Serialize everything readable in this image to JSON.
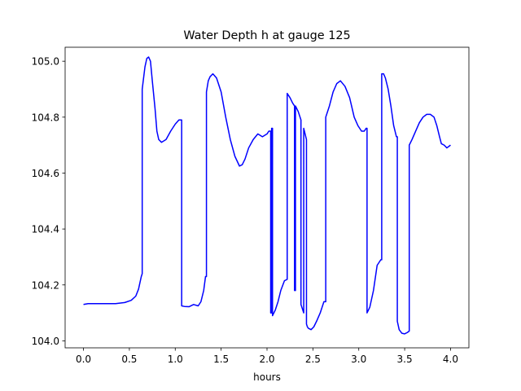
{
  "chart_data": {
    "type": "line",
    "title": "Water Depth h at gauge 125",
    "xlabel": "hours",
    "ylabel": "",
    "xlim": [
      -0.2,
      4.2
    ],
    "ylim": [
      103.975,
      105.05
    ],
    "xticks": [
      0.0,
      0.5,
      1.0,
      1.5,
      2.0,
      2.5,
      3.0,
      3.5,
      4.0
    ],
    "xtick_labels": [
      "0.0",
      "0.5",
      "1.0",
      "1.5",
      "2.0",
      "2.5",
      "3.0",
      "3.5",
      "4.0"
    ],
    "yticks": [
      104.0,
      104.2,
      104.4,
      104.6,
      104.8,
      105.0
    ],
    "ytick_labels": [
      "104.0",
      "104.2",
      "104.4",
      "104.6",
      "104.8",
      "105.0"
    ],
    "grid": false,
    "series": [
      {
        "color": "#0000ff",
        "x": [
          0.0,
          0.05,
          0.2,
          0.35,
          0.45,
          0.52,
          0.57,
          0.6,
          0.63,
          0.64,
          0.64,
          0.67,
          0.69,
          0.71,
          0.73,
          0.75,
          0.78,
          0.8,
          0.82,
          0.85,
          0.9,
          0.95,
          1.0,
          1.04,
          1.07,
          1.07,
          1.1,
          1.15,
          1.2,
          1.25,
          1.28,
          1.31,
          1.33,
          1.34,
          1.34,
          1.36,
          1.38,
          1.41,
          1.45,
          1.5,
          1.55,
          1.6,
          1.65,
          1.7,
          1.73,
          1.76,
          1.8,
          1.85,
          1.9,
          1.95,
          2.0,
          2.02,
          2.04,
          2.04,
          2.05,
          2.05,
          2.06,
          2.06,
          2.09,
          2.12,
          2.15,
          2.19,
          2.22,
          2.22,
          2.25,
          2.28,
          2.3,
          2.3,
          2.31,
          2.31,
          2.34,
          2.37,
          2.37,
          2.4,
          2.4,
          2.43,
          2.43,
          2.44,
          2.45,
          2.48,
          2.51,
          2.54,
          2.58,
          2.62,
          2.64,
          2.64,
          2.68,
          2.72,
          2.76,
          2.8,
          2.85,
          2.9,
          2.95,
          2.99,
          3.03,
          3.06,
          3.08,
          3.09,
          3.09,
          3.12,
          3.16,
          3.2,
          3.24,
          3.25,
          3.25,
          3.27,
          3.29,
          3.32,
          3.35,
          3.38,
          3.41,
          3.42,
          3.42,
          3.44,
          3.47,
          3.5,
          3.53,
          3.55,
          3.55,
          3.58,
          3.62,
          3.66,
          3.7,
          3.74,
          3.78,
          3.82,
          3.85,
          3.88,
          3.9,
          3.93,
          3.96,
          4.0
        ],
        "y": [
          104.13,
          104.133,
          104.133,
          104.133,
          104.137,
          104.145,
          104.16,
          104.185,
          104.23,
          104.24,
          104.9,
          104.98,
          105.01,
          105.015,
          105.0,
          104.93,
          104.83,
          104.75,
          104.72,
          104.71,
          104.72,
          104.75,
          104.775,
          104.79,
          104.79,
          104.125,
          104.123,
          104.122,
          104.13,
          104.125,
          104.14,
          104.18,
          104.23,
          104.23,
          104.89,
          104.93,
          104.945,
          104.955,
          104.94,
          104.89,
          104.8,
          104.72,
          104.66,
          104.625,
          104.63,
          104.65,
          104.69,
          104.72,
          104.74,
          104.73,
          104.74,
          104.75,
          104.75,
          104.1,
          104.1,
          104.76,
          104.76,
          104.09,
          104.11,
          104.14,
          104.18,
          104.215,
          104.22,
          104.885,
          104.87,
          104.85,
          104.84,
          104.18,
          104.18,
          104.84,
          104.82,
          104.79,
          104.13,
          104.1,
          104.76,
          104.72,
          104.06,
          104.05,
          104.045,
          104.04,
          104.05,
          104.07,
          104.1,
          104.14,
          104.14,
          104.8,
          104.84,
          104.89,
          104.92,
          104.93,
          104.91,
          104.87,
          104.8,
          104.77,
          104.75,
          104.75,
          104.76,
          104.76,
          104.1,
          104.12,
          104.18,
          104.27,
          104.29,
          104.29,
          104.955,
          104.955,
          104.94,
          104.9,
          104.84,
          104.77,
          104.73,
          104.73,
          104.07,
          104.04,
          104.027,
          104.025,
          104.03,
          104.035,
          104.7,
          104.72,
          104.75,
          104.78,
          104.8,
          104.81,
          104.81,
          104.8,
          104.77,
          104.73,
          104.705,
          104.7,
          104.69,
          104.7
        ]
      }
    ]
  }
}
